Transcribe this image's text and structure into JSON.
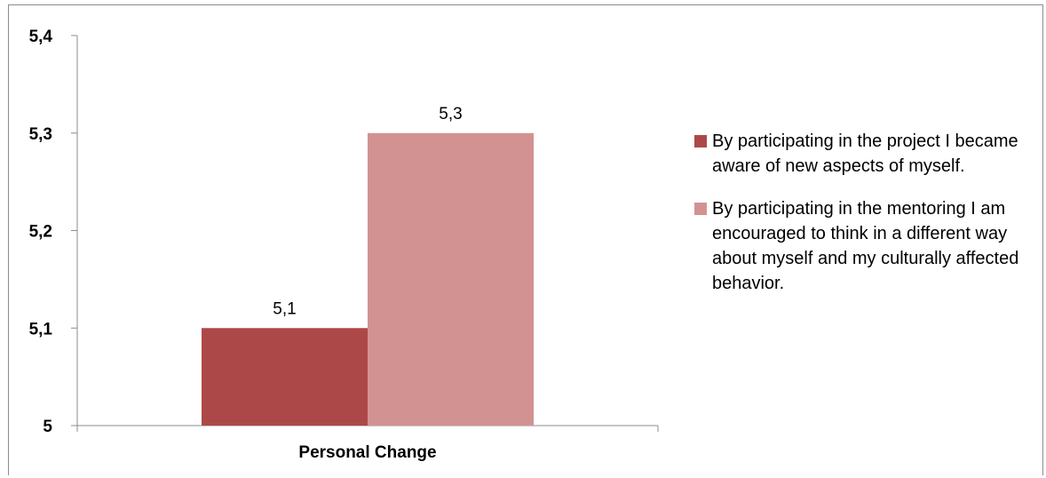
{
  "chart_data": {
    "type": "bar",
    "categories": [
      "Personal Change"
    ],
    "series": [
      {
        "name": "By participating in the project I became aware of new aspects of myself.",
        "values": [
          5.1
        ],
        "value_labels": [
          "5,1"
        ],
        "color": "#ad4848"
      },
      {
        "name": "By participating in the mentoring I am encouraged to think in a different way about myself and my culturally affected behavior.",
        "values": [
          5.3
        ],
        "value_labels": [
          "5,3"
        ],
        "color": "#d39292"
      }
    ],
    "ylim": [
      5,
      5.4
    ],
    "yticks": [
      5,
      5.1,
      5.2,
      5.3,
      5.4
    ],
    "ytick_labels": [
      "5",
      "5,1",
      "5,2",
      "5,3",
      "5,4"
    ],
    "title": "",
    "xlabel": "",
    "ylabel": "",
    "legend_position": "right",
    "grid": false
  }
}
